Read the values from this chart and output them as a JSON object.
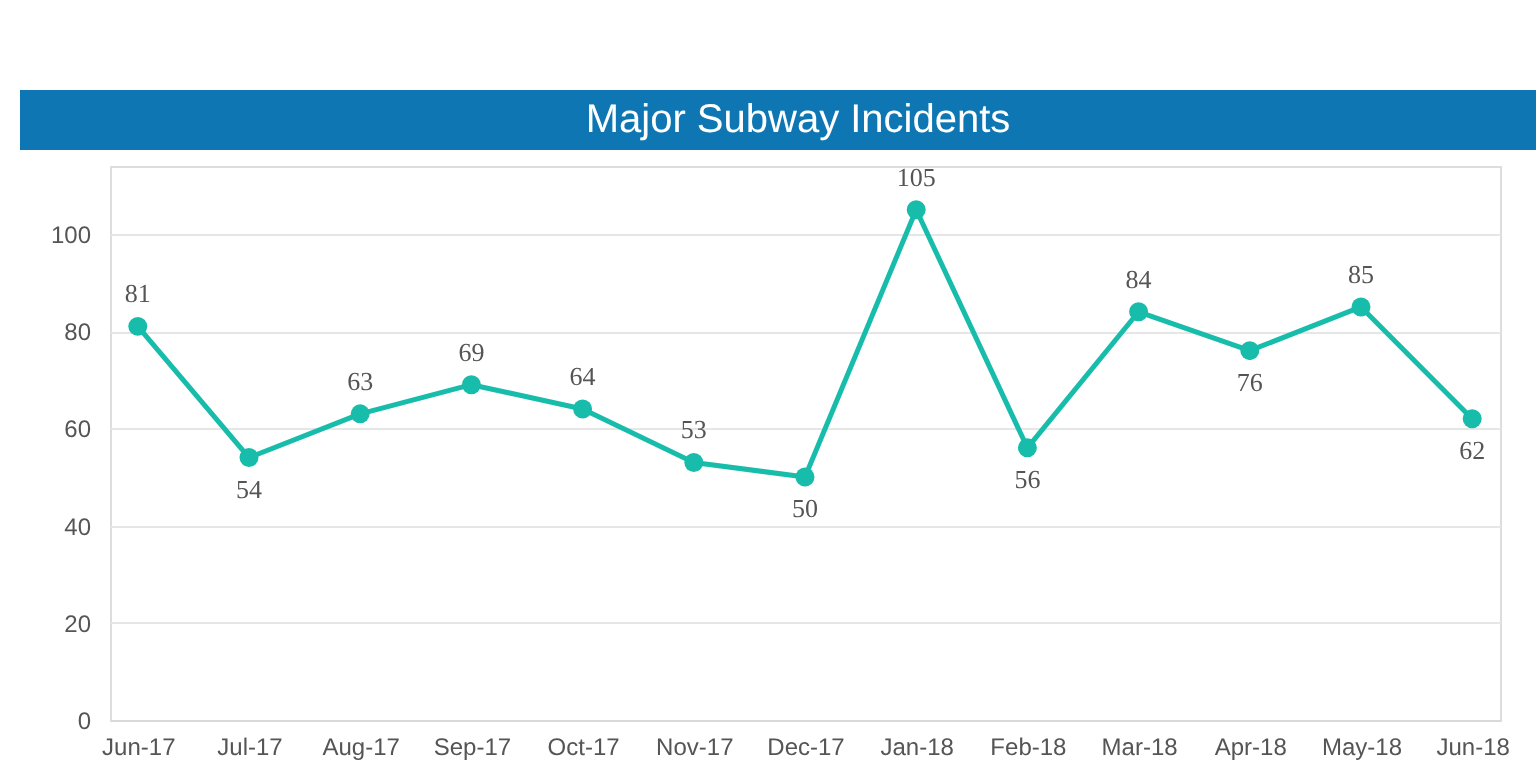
{
  "chart_data": {
    "type": "line",
    "title": "Major Subway Incidents",
    "categories": [
      "Jun-17",
      "Jul-17",
      "Aug-17",
      "Sep-17",
      "Oct-17",
      "Nov-17",
      "Dec-17",
      "Jan-18",
      "Feb-18",
      "Mar-18",
      "Apr-18",
      "May-18",
      "Jun-18"
    ],
    "series": [
      {
        "color": "#17bcaa",
        "values": [
          81,
          54,
          63,
          69,
          64,
          53,
          50,
          105,
          56,
          84,
          76,
          85,
          62
        ]
      }
    ],
    "ylim": [
      0,
      114
    ],
    "yticks": [
      0,
      20,
      40,
      60,
      80,
      100
    ],
    "grid": "y",
    "marker": "circle",
    "line_style": "solid",
    "data_labels": true,
    "legend": false
  }
}
